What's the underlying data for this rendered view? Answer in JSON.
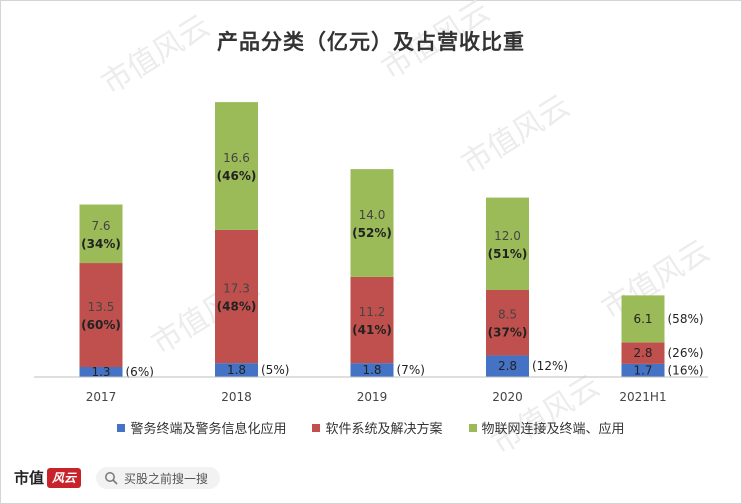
{
  "chart_data": {
    "type": "bar",
    "stacked": true,
    "title": "产品分类（亿元）及占营收比重",
    "categories": [
      "2017",
      "2018",
      "2019",
      "2020",
      "2021H1"
    ],
    "series": [
      {
        "name": "警务终端及警务信息化应用",
        "color": "#4472c4",
        "values": [
          1.3,
          1.8,
          1.8,
          2.8,
          1.7
        ],
        "value_labels": [
          "1.3",
          "1.8",
          "1.8",
          "2.8",
          "1.7"
        ],
        "share_labels": [
          "(6%)",
          "(5%)",
          "(7%)",
          "(12%)",
          "(16%)"
        ]
      },
      {
        "name": "软件系统及解决方案",
        "color": "#c0504d",
        "values": [
          13.5,
          17.3,
          11.2,
          8.5,
          2.8
        ],
        "value_labels": [
          "13.5",
          "17.3",
          "11.2",
          "8.5",
          "2.8"
        ],
        "share_labels": [
          "(60%)",
          "(48%)",
          "(41%)",
          "(37%)",
          "(26%)"
        ]
      },
      {
        "name": "物联网连接及终端、应用",
        "color": "#9bbb59",
        "values": [
          7.6,
          16.6,
          14.0,
          12.0,
          6.1
        ],
        "value_labels": [
          "7.6",
          "16.6",
          "14.0",
          "12.0",
          "6.1"
        ],
        "share_labels": [
          "(34%)",
          "(46%)",
          "(52%)",
          "(51%)",
          "(58%)"
        ]
      }
    ],
    "grid": false,
    "legend_position": "bottom"
  },
  "footer": {
    "logo_text": "市值",
    "logo_seal": "风云",
    "search_text": "买股之前搜一搜"
  },
  "watermark": "市值风云"
}
